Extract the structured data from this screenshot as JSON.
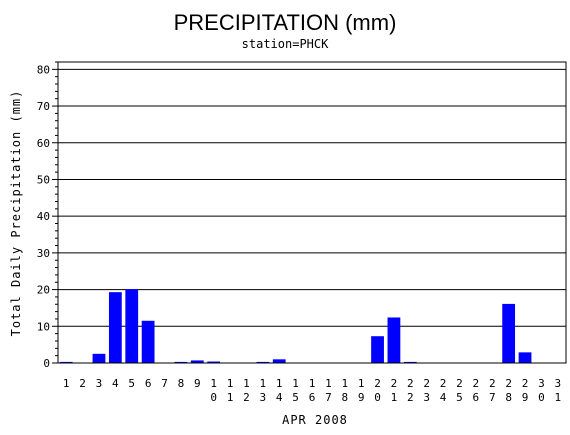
{
  "chart_data": {
    "type": "bar",
    "title": "PRECIPITATION (mm)",
    "subtitle": "station=PHCK",
    "xlabel": "APR 2008",
    "ylabel": "Total Daily Precipitation (mm)",
    "ylim": [
      0,
      82
    ],
    "yticks": [
      0,
      10,
      20,
      30,
      40,
      50,
      60,
      70,
      80
    ],
    "grid": "horizontal",
    "bar_color": "#0000ff",
    "categories": [
      "1",
      "2",
      "3",
      "4",
      "5",
      "6",
      "7",
      "8",
      "9",
      "10",
      "11",
      "12",
      "13",
      "14",
      "15",
      "16",
      "17",
      "18",
      "19",
      "20",
      "21",
      "22",
      "23",
      "24",
      "25",
      "26",
      "27",
      "28",
      "29",
      "30",
      "31"
    ],
    "values": [
      0.3,
      0,
      2.5,
      19.3,
      20.1,
      11.5,
      0,
      0.3,
      0.7,
      0.4,
      0,
      0,
      0.3,
      1.0,
      0,
      0,
      0,
      0,
      0,
      7.3,
      12.4,
      0.3,
      0,
      0,
      0,
      0,
      0,
      16.1,
      2.9,
      0,
      0
    ]
  }
}
